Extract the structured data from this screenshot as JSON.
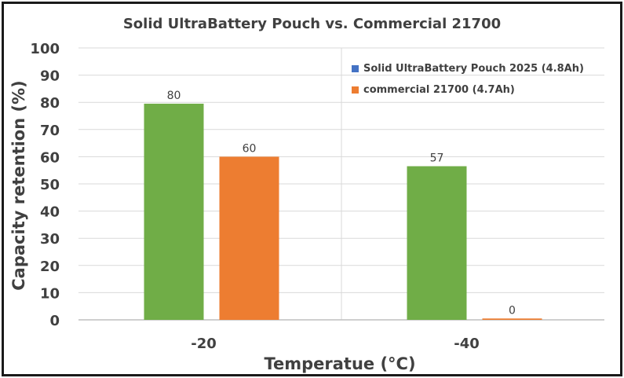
{
  "chart_data": {
    "type": "bar",
    "title": "Solid UltraBattery Pouch vs. Commercial 21700",
    "xlabel": "Temperatue (°C)",
    "ylabel": "Capacity retention (%)",
    "categories": [
      "-20",
      "-40"
    ],
    "ylim": [
      0,
      100
    ],
    "yticks": [
      "0",
      "10",
      "20",
      "30",
      "40",
      "50",
      "60",
      "70",
      "80",
      "90",
      "100"
    ],
    "grid": true,
    "legend_position": "top-right",
    "series": [
      {
        "name": "Solid UltraBattery Pouch 2025 (4.8Ah)",
        "legend_color": "#4472c4",
        "bar_color": "#70ad47",
        "values": [
          79.5,
          56.5
        ],
        "labels": [
          "80",
          "57"
        ]
      },
      {
        "name": "commercial 21700 (4.7Ah)",
        "legend_color": "#ed7d31",
        "bar_color": "#ed7d31",
        "values": [
          60,
          0.5
        ],
        "labels": [
          "60",
          "0"
        ]
      }
    ]
  }
}
